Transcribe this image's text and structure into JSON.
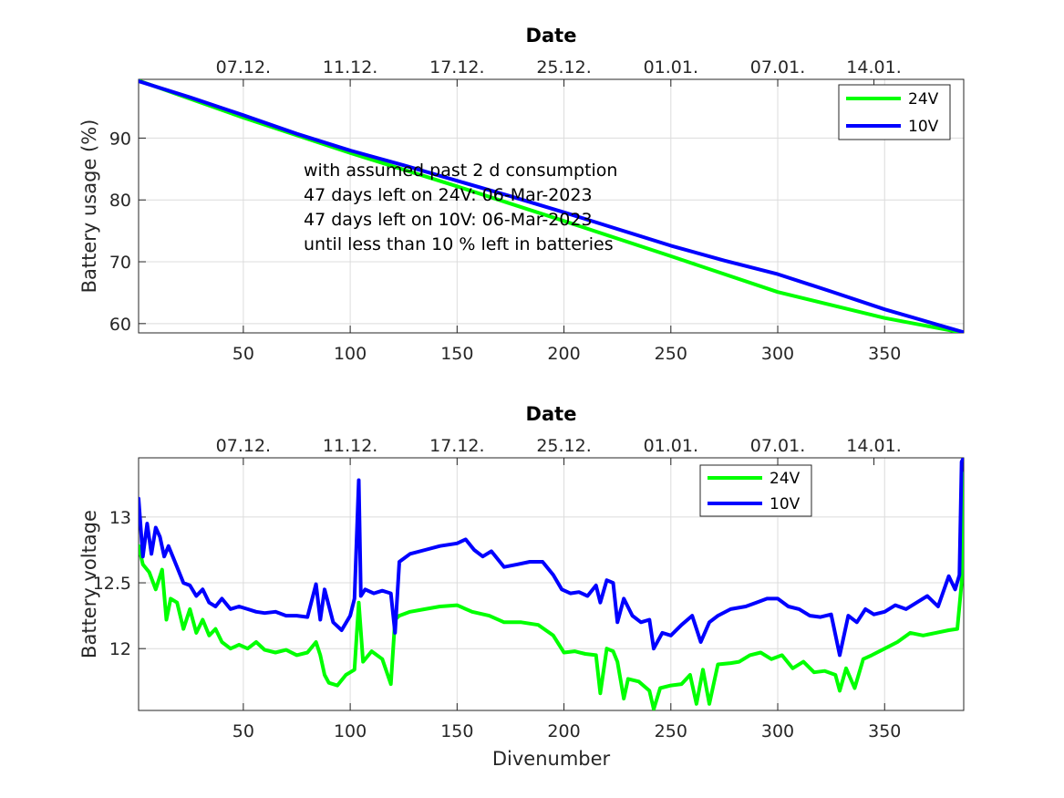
{
  "chart_data": [
    {
      "type": "line",
      "title": "Date",
      "xlabel": "",
      "ylabel": "Battery usage (%)",
      "xlim": [
        1,
        387
      ],
      "ylim": [
        58.5,
        99.5
      ],
      "x_ticks": [
        50,
        100,
        150,
        200,
        250,
        300,
        350
      ],
      "y_ticks": [
        60,
        70,
        80,
        90
      ],
      "top_ticks": [
        {
          "x": 50,
          "label": "07.12."
        },
        {
          "x": 100,
          "label": "11.12."
        },
        {
          "x": 150,
          "label": "17.12."
        },
        {
          "x": 200,
          "label": "25.12."
        },
        {
          "x": 250,
          "label": "01.01."
        },
        {
          "x": 300,
          "label": "07.01."
        },
        {
          "x": 345,
          "label": "14.01."
        }
      ],
      "grid": true,
      "legend": "top-right",
      "annotations": [
        "with assumed past 2 d consumption",
        "47 days left on 24V: 06-Mar-2023",
        "47 days left on 10V: 06-Mar-2023",
        "until less than 10 % left in batteries"
      ],
      "series": [
        {
          "name": "24V",
          "color": "#00ff00",
          "x": [
            1,
            50,
            100,
            150,
            200,
            250,
            300,
            350,
            387
          ],
          "y": [
            99.3,
            93.3,
            87.6,
            82.2,
            76.6,
            70.9,
            65.1,
            60.9,
            58.5
          ]
        },
        {
          "name": "10V",
          "color": "#0000ff",
          "x": [
            1,
            25,
            50,
            75,
            100,
            125,
            150,
            175,
            200,
            225,
            250,
            275,
            300,
            325,
            350,
            387
          ],
          "y": [
            99.2,
            96.6,
            93.7,
            90.7,
            88.0,
            85.6,
            83.1,
            80.6,
            78.0,
            75.3,
            72.6,
            70.2,
            68.0,
            65.2,
            62.3,
            58.6
          ]
        }
      ]
    },
    {
      "type": "line",
      "title": "Date",
      "xlabel": "Divenumber",
      "ylabel": "Battery voltage",
      "xlim": [
        1,
        387
      ],
      "ylim": [
        11.53,
        13.45
      ],
      "x_ticks": [
        50,
        100,
        150,
        200,
        250,
        300,
        350
      ],
      "y_ticks": [
        12,
        12.5,
        13
      ],
      "top_ticks": [
        {
          "x": 50,
          "label": "07.12."
        },
        {
          "x": 100,
          "label": "11.12."
        },
        {
          "x": 150,
          "label": "17.12."
        },
        {
          "x": 200,
          "label": "25.12."
        },
        {
          "x": 250,
          "label": "01.01."
        },
        {
          "x": 300,
          "label": "07.01."
        },
        {
          "x": 345,
          "label": "14.01."
        }
      ],
      "grid": true,
      "legend": "top-right",
      "series": [
        {
          "name": "24V",
          "color": "#00ff00",
          "x": [
            1,
            3,
            6,
            9,
            12,
            14,
            16,
            19,
            22,
            25,
            28,
            31,
            34,
            37,
            40,
            44,
            48,
            52,
            56,
            60,
            65,
            70,
            75,
            80,
            84,
            86,
            88,
            90,
            94,
            98,
            102,
            104,
            106,
            110,
            115,
            119,
            121,
            123,
            128,
            135,
            142,
            150,
            157,
            165,
            172,
            180,
            188,
            195,
            200,
            205,
            210,
            215,
            217,
            220,
            223,
            225,
            228,
            230,
            235,
            240,
            242,
            245,
            250,
            255,
            259,
            262,
            265,
            268,
            272,
            278,
            282,
            287,
            292,
            297,
            302,
            307,
            312,
            317,
            322,
            327,
            329,
            332,
            336,
            340,
            344,
            350,
            356,
            362,
            368,
            374,
            380,
            384,
            386,
            387
          ],
          "y": [
            12.78,
            12.64,
            12.58,
            12.45,
            12.6,
            12.22,
            12.38,
            12.35,
            12.15,
            12.3,
            12.12,
            12.22,
            12.1,
            12.15,
            12.05,
            12.0,
            12.03,
            12.0,
            12.05,
            11.99,
            11.97,
            11.99,
            11.95,
            11.97,
            12.05,
            11.95,
            11.8,
            11.74,
            11.72,
            11.8,
            11.84,
            12.35,
            11.9,
            11.98,
            11.92,
            11.73,
            12.22,
            12.25,
            12.28,
            12.3,
            12.32,
            12.33,
            12.28,
            12.25,
            12.2,
            12.2,
            12.18,
            12.1,
            11.97,
            11.98,
            11.96,
            11.95,
            11.66,
            12.0,
            11.98,
            11.9,
            11.62,
            11.77,
            11.75,
            11.68,
            11.54,
            11.7,
            11.72,
            11.73,
            11.8,
            11.58,
            11.84,
            11.58,
            11.88,
            11.89,
            11.9,
            11.95,
            11.97,
            11.92,
            11.95,
            11.85,
            11.9,
            11.82,
            11.83,
            11.8,
            11.68,
            11.85,
            11.7,
            11.92,
            11.95,
            12.0,
            12.05,
            12.12,
            12.1,
            12.12,
            12.14,
            12.15,
            12.5,
            13.33
          ]
        },
        {
          "name": "10V",
          "color": "#0000ff",
          "x": [
            1,
            3,
            5,
            7,
            9,
            11,
            13,
            15,
            17,
            19,
            22,
            25,
            28,
            31,
            34,
            37,
            40,
            44,
            48,
            52,
            56,
            60,
            65,
            70,
            75,
            80,
            84,
            86,
            88,
            92,
            96,
            100,
            102,
            104,
            105,
            107,
            111,
            115,
            119,
            121,
            123,
            128,
            135,
            142,
            150,
            154,
            158,
            162,
            166,
            172,
            178,
            184,
            190,
            195,
            199,
            203,
            207,
            211,
            215,
            217,
            220,
            223,
            225,
            228,
            232,
            236,
            240,
            242,
            246,
            250,
            255,
            260,
            264,
            268,
            272,
            278,
            285,
            290,
            295,
            300,
            305,
            310,
            315,
            320,
            325,
            329,
            333,
            337,
            341,
            345,
            350,
            355,
            360,
            365,
            370,
            375,
            380,
            383,
            385,
            386,
            387
          ],
          "y": [
            13.14,
            12.7,
            12.95,
            12.72,
            12.92,
            12.85,
            12.7,
            12.78,
            12.7,
            12.62,
            12.5,
            12.48,
            12.4,
            12.45,
            12.35,
            12.32,
            12.38,
            12.3,
            12.32,
            12.3,
            12.28,
            12.27,
            12.28,
            12.25,
            12.25,
            12.24,
            12.49,
            12.22,
            12.45,
            12.2,
            12.14,
            12.25,
            12.38,
            13.28,
            12.4,
            12.45,
            12.42,
            12.44,
            12.42,
            12.12,
            12.66,
            12.72,
            12.75,
            12.78,
            12.8,
            12.83,
            12.75,
            12.7,
            12.74,
            12.62,
            12.64,
            12.66,
            12.66,
            12.56,
            12.45,
            12.42,
            12.43,
            12.4,
            12.48,
            12.35,
            12.52,
            12.5,
            12.2,
            12.38,
            12.25,
            12.2,
            12.22,
            12.0,
            12.12,
            12.1,
            12.18,
            12.25,
            12.05,
            12.2,
            12.25,
            12.3,
            12.32,
            12.35,
            12.38,
            12.38,
            12.32,
            12.3,
            12.25,
            12.24,
            12.26,
            11.95,
            12.25,
            12.2,
            12.3,
            12.26,
            12.28,
            12.33,
            12.3,
            12.35,
            12.4,
            12.32,
            12.55,
            12.45,
            12.56,
            13.42,
            13.45
          ]
        }
      ]
    }
  ]
}
